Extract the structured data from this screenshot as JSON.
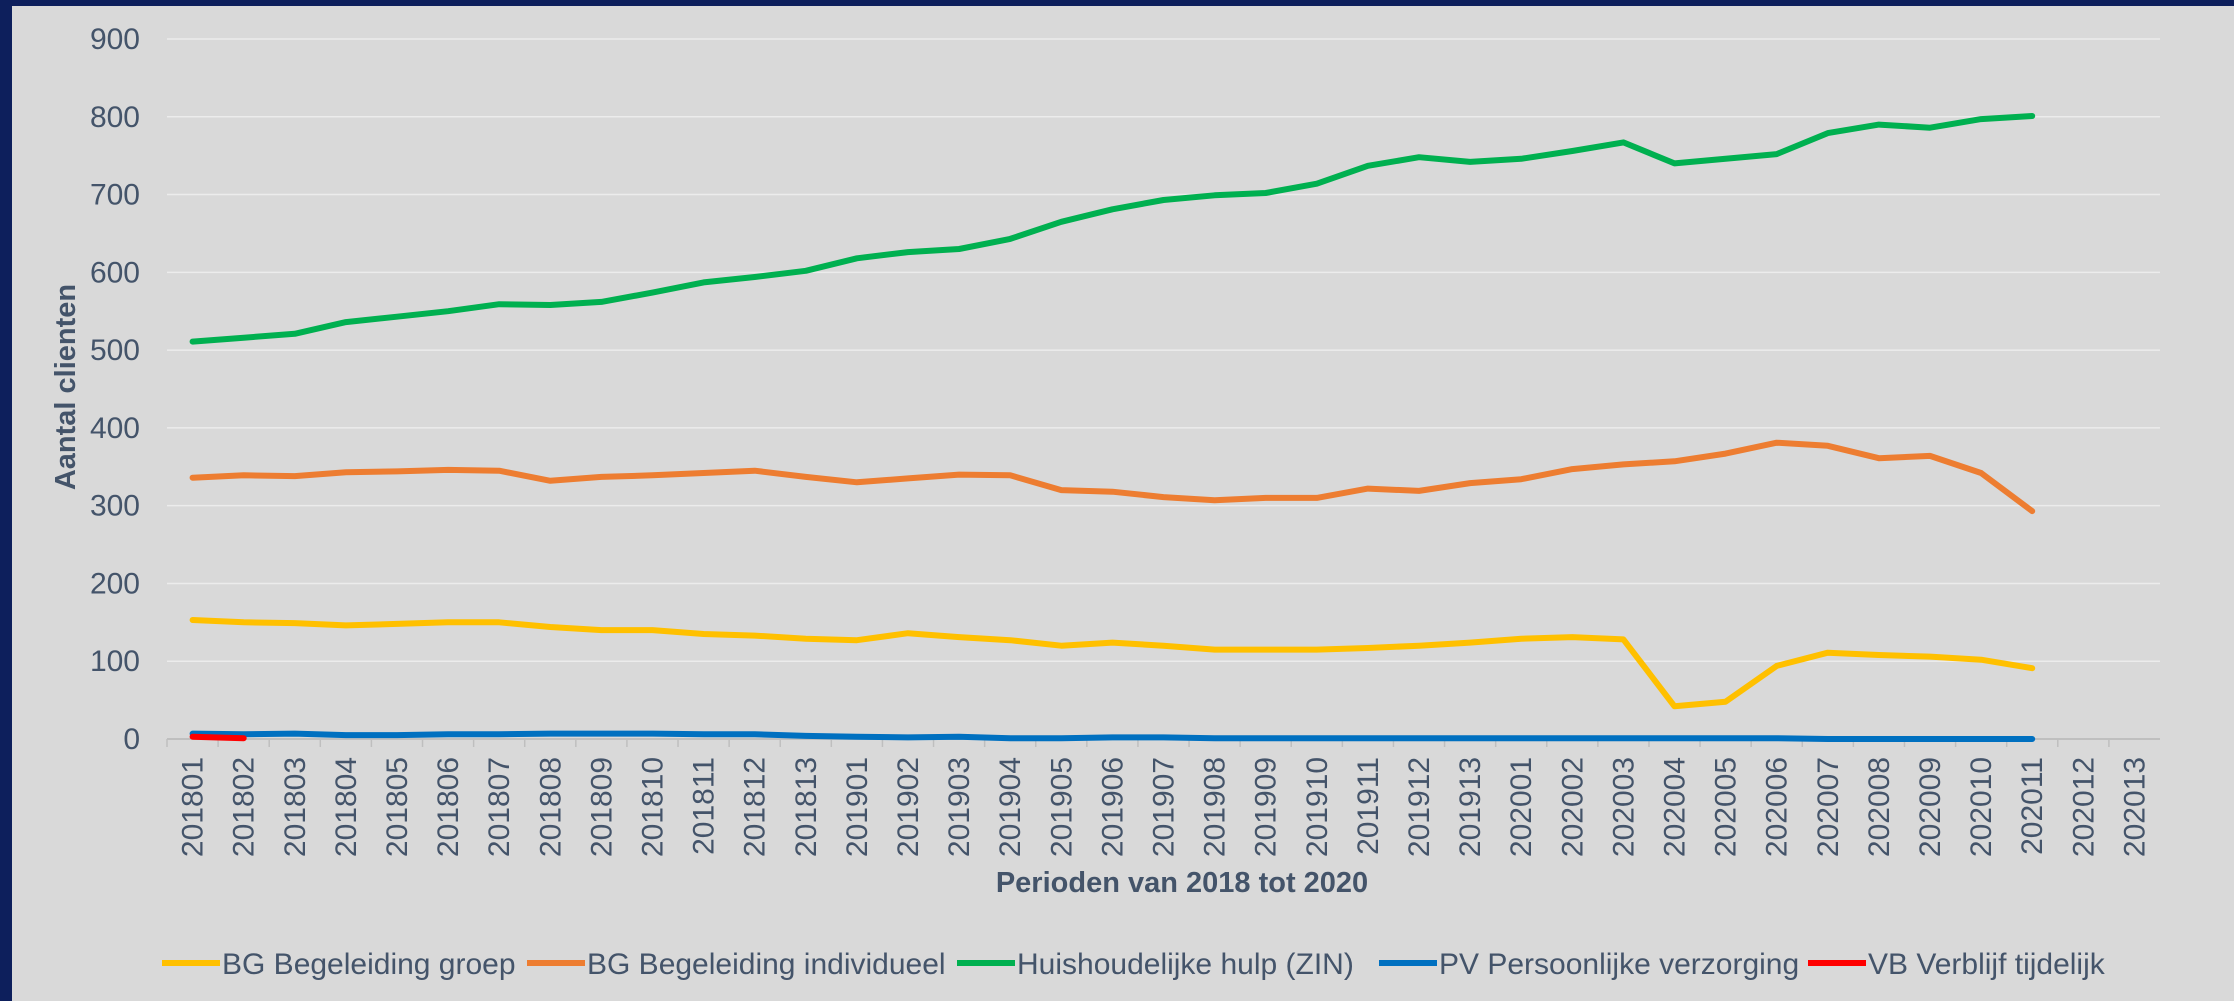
{
  "chart_data": {
    "type": "line",
    "xlabel": "Perioden van 2018 tot 2020",
    "ylabel": "Aantal clienten",
    "ylim": [
      0,
      900
    ],
    "yticks": [
      0,
      100,
      200,
      300,
      400,
      500,
      600,
      700,
      800,
      900
    ],
    "grid": "horizontal",
    "legend": "bottom",
    "categories": [
      "201801",
      "201802",
      "201803",
      "201804",
      "201805",
      "201806",
      "201807",
      "201808",
      "201809",
      "201810",
      "201811",
      "201812",
      "201813",
      "201901",
      "201902",
      "201903",
      "201904",
      "201905",
      "201906",
      "201907",
      "201908",
      "201909",
      "201910",
      "201911",
      "201912",
      "201913",
      "202001",
      "202002",
      "202003",
      "202004",
      "202005",
      "202006",
      "202007",
      "202008",
      "202009",
      "202010",
      "202011",
      "202012",
      "202013"
    ],
    "series": [
      {
        "name": "BG Begeleiding groep",
        "color": "#ffc000",
        "values": [
          153,
          150,
          149,
          146,
          148,
          150,
          150,
          144,
          140,
          140,
          135,
          133,
          129,
          127,
          136,
          131,
          127,
          120,
          124,
          120,
          115,
          115,
          115,
          117,
          120,
          124,
          129,
          131,
          128,
          42,
          48,
          94,
          111,
          108,
          106,
          102,
          91,
          null,
          null
        ]
      },
      {
        "name": "BG Begeleiding individueel",
        "color": "#ed7d31",
        "values": [
          336,
          339,
          338,
          343,
          344,
          346,
          345,
          332,
          337,
          339,
          342,
          345,
          337,
          330,
          335,
          340,
          339,
          320,
          318,
          311,
          307,
          310,
          310,
          322,
          319,
          329,
          334,
          347,
          353,
          357,
          367,
          381,
          377,
          361,
          364,
          342,
          293,
          null,
          null
        ]
      },
      {
        "name": "Huishoudelijke hulp  (ZIN)",
        "color": "#00b050",
        "values": [
          511,
          516,
          521,
          536,
          543,
          550,
          559,
          558,
          562,
          574,
          587,
          594,
          602,
          618,
          626,
          630,
          643,
          665,
          681,
          693,
          699,
          702,
          714,
          737,
          748,
          742,
          746,
          756,
          767,
          740,
          746,
          752,
          779,
          790,
          786,
          797,
          801,
          null,
          null
        ]
      },
      {
        "name": "PV Persoonlijke verzorging",
        "color": "#0070c0",
        "values": [
          7,
          6,
          7,
          5,
          5,
          6,
          6,
          7,
          7,
          7,
          6,
          6,
          4,
          3,
          2,
          3,
          1,
          1,
          2,
          2,
          1,
          1,
          1,
          1,
          1,
          1,
          1,
          1,
          1,
          1,
          1,
          1,
          0,
          0,
          0,
          0,
          0,
          null,
          null
        ]
      },
      {
        "name": "VB Verblijf tijdelijk",
        "color": "#ff0000",
        "values": [
          3,
          1,
          null,
          null,
          null,
          null,
          null,
          null,
          null,
          null,
          null,
          null,
          null,
          null,
          null,
          null,
          null,
          null,
          null,
          null,
          null,
          null,
          null,
          null,
          null,
          null,
          null,
          null,
          null,
          null,
          null,
          null,
          null,
          null,
          null,
          null,
          null,
          null,
          null
        ]
      }
    ]
  }
}
